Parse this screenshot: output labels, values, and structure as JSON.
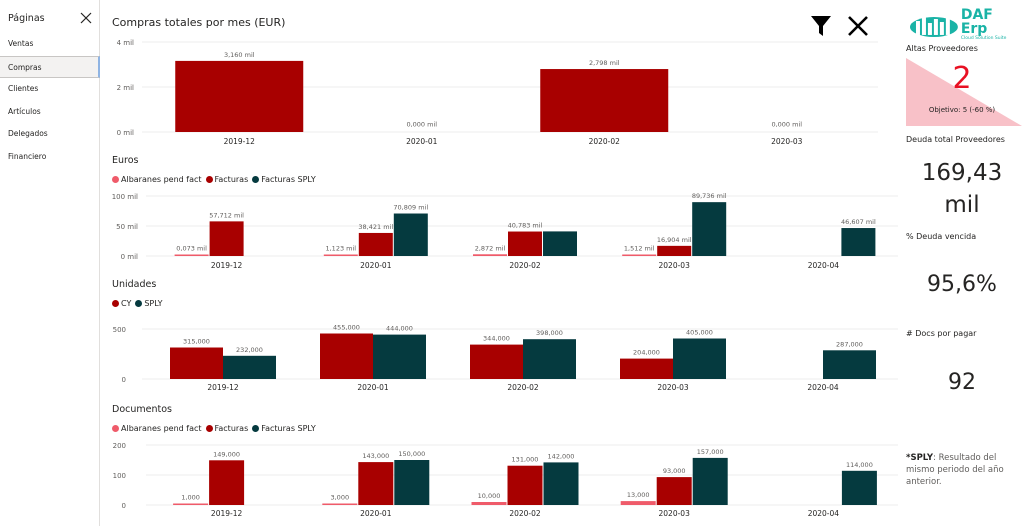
{
  "sidebar": {
    "header": "Páginas",
    "items": [
      "Ventas",
      "Compras",
      "Clientes",
      "Artículos",
      "Delegados",
      "Financiero"
    ],
    "active_index": 1
  },
  "toolbar": {
    "filter_icon": "filter-icon",
    "close_icon": "close-icon"
  },
  "logo": {
    "text": "DAF Erp",
    "subtext": "Cloud Solution Suite"
  },
  "colors": {
    "cy": "#a80000",
    "sply": "#053a3f",
    "pend": "#ef5b6a",
    "kpi_bg": "#f8c1c8",
    "kpi_value": "#e81123"
  },
  "chart_data": [
    {
      "id": "monthly",
      "type": "bar",
      "title": "Compras totales por mes (EUR)",
      "categories": [
        "2019-12",
        "2020-01",
        "2020-02",
        "2020-03"
      ],
      "series": [
        {
          "name": "",
          "values": [
            3.16,
            0,
            2.798,
            0
          ],
          "labels": [
            "3,160 mil",
            "0,000 mil",
            "2,798 mil",
            "0,000 mil"
          ]
        }
      ],
      "yticks": [
        "4 mil",
        "2 mil",
        "0 mil"
      ],
      "ylim": [
        0,
        4
      ]
    },
    {
      "id": "euros",
      "type": "bar",
      "title": "Euros",
      "categories": [
        "2019-12",
        "2020-01",
        "2020-02",
        "2020-03",
        "2020-04"
      ],
      "series": [
        {
          "name": "Albaranes pend fact",
          "values": [
            0.073,
            1.123,
            2.872,
            1.512,
            null
          ],
          "labels": [
            "0,073 mil",
            "1,123 mil",
            "2,872 mil",
            "1,512 mil",
            ""
          ]
        },
        {
          "name": "Facturas",
          "values": [
            57.712,
            38.421,
            40.783,
            16.904,
            null
          ],
          "labels": [
            "57,712 mil",
            "38,421 mil",
            "40,783 mil",
            "16,904 mil",
            ""
          ]
        },
        {
          "name": "Facturas SPLY",
          "values": [
            null,
            70.809,
            41.0,
            89.736,
            46.607
          ],
          "labels": [
            "",
            "70,809 mil",
            "",
            "89,736 mil",
            "46,607 mil"
          ]
        }
      ],
      "yticks": [
        "100 mil",
        "50 mil",
        "0 mil"
      ],
      "ylim": [
        0,
        100
      ]
    },
    {
      "id": "unidades",
      "type": "bar",
      "title": "Unidades",
      "categories": [
        "2019-12",
        "2020-01",
        "2020-02",
        "2020-03",
        "2020-04"
      ],
      "series": [
        {
          "name": "CY",
          "values": [
            315,
            455,
            344,
            204,
            null
          ],
          "labels": [
            "315,000",
            "455,000",
            "344,000",
            "204,000",
            ""
          ]
        },
        {
          "name": "SPLY",
          "values": [
            232,
            444,
            398,
            405,
            287
          ],
          "labels": [
            "232,000",
            "444,000",
            "398,000",
            "405,000",
            "287,000"
          ]
        }
      ],
      "yticks": [
        "500",
        "0"
      ],
      "ylim": [
        0,
        500
      ]
    },
    {
      "id": "documentos",
      "type": "bar",
      "title": "Documentos",
      "categories": [
        "2019-12",
        "2020-01",
        "2020-02",
        "2020-03",
        "2020-04"
      ],
      "series": [
        {
          "name": "Albaranes pend fact",
          "values": [
            1,
            3,
            10,
            13,
            null
          ],
          "labels": [
            "1,000",
            "3,000",
            "10,000",
            "13,000",
            ""
          ]
        },
        {
          "name": "Facturas",
          "values": [
            149,
            143,
            131,
            93,
            null
          ],
          "labels": [
            "149,000",
            "143,000",
            "131,000",
            "93,000",
            ""
          ]
        },
        {
          "name": "Facturas SPLY",
          "values": [
            null,
            150,
            142,
            157,
            114
          ],
          "labels": [
            "",
            "150,000",
            "142,000",
            "157,000",
            "114,000"
          ]
        }
      ],
      "yticks": [
        "200",
        "100",
        "0"
      ],
      "ylim": [
        0,
        200
      ]
    }
  ],
  "kpis": {
    "altas": {
      "label": "Altas Proveedores",
      "value": "2",
      "goal": "Objetivo: 5 (-60 %)"
    },
    "deuda": {
      "label": "Deuda total Proveedores",
      "value_line1": "169,43",
      "value_line2": "mil"
    },
    "vencida": {
      "label": "% Deuda vencida",
      "value": "95,6%"
    },
    "docs": {
      "label": "# Docs por pagar",
      "value": "92"
    }
  },
  "note": {
    "bold": "*SPLY",
    "text": ": Resultado del mismo periodo del año anterior."
  }
}
